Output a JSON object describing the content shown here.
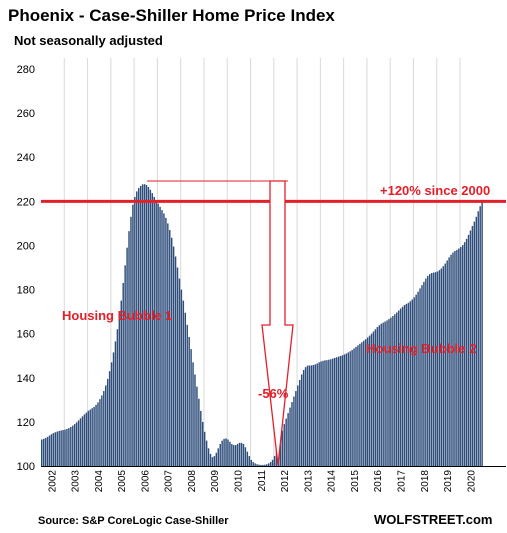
{
  "colors": {
    "bar": "#2e4d7b",
    "accent": "#e3202a",
    "grid": "#d9d9d9"
  },
  "header": {
    "title": "Phoenix - Case-Shiller Home Price Index",
    "subtitle": "Not seasonally adjusted"
  },
  "footer": {
    "source": "Source: S&P CoreLogic Case-Shiller",
    "brand": "WOLFSTREET.com"
  },
  "annotations": {
    "since2000": "+120% since 2000",
    "bubble1": "Housing Bubble 1",
    "bubble2": "Housing Bubble 2",
    "drop": "-56%"
  },
  "chart_data": {
    "type": "bar",
    "title": "Phoenix - Case-Shiller Home Price Index",
    "subtitle": "Not seasonally adjusted",
    "frequency": "monthly",
    "start": "2002-01",
    "ylim": [
      100,
      285
    ],
    "yticks": [
      100,
      120,
      140,
      160,
      180,
      200,
      220,
      240,
      260,
      280
    ],
    "xticks": [
      "2002",
      "2003",
      "2004",
      "2005",
      "2006",
      "2007",
      "2008",
      "2009",
      "2010",
      "2011",
      "2012",
      "2013",
      "2014",
      "2015",
      "2016",
      "2017",
      "2018",
      "2019",
      "2020"
    ],
    "reference_line": {
      "value": 220,
      "label": "+120% since 2000"
    },
    "grid": "vertical",
    "values": [
      112,
      112.3,
      112.7,
      113.2,
      113.8,
      114.4,
      114.9,
      115.3,
      115.6,
      115.9,
      116.1,
      116.3,
      116.5,
      116.8,
      117.2,
      117.7,
      118.3,
      119,
      119.8,
      120.7,
      121.6,
      122.5,
      123.4,
      124.2,
      125,
      125.6,
      126.2,
      126.8,
      127.7,
      128.8,
      130.3,
      132,
      134,
      136.5,
      139.5,
      143,
      147,
      151.5,
      156.5,
      162,
      168,
      175,
      183,
      191,
      199,
      206.5,
      213,
      218.5,
      222,
      224.5,
      226,
      227,
      227.7,
      227.8,
      227.4,
      226.5,
      225.2,
      223.7,
      222,
      220.4,
      219,
      217.5,
      216,
      214.5,
      212.5,
      210,
      207,
      203.5,
      199.5,
      195,
      190,
      185,
      180,
      175,
      169.5,
      164,
      158.5,
      153,
      147,
      141.5,
      136,
      130.5,
      125,
      120,
      115.5,
      111.5,
      108,
      105.5,
      104,
      104.5,
      106,
      108,
      110,
      111.5,
      112.3,
      112.5,
      112,
      111,
      110,
      109.5,
      109.5,
      110,
      110.5,
      110.5,
      110,
      108.5,
      106.5,
      104.5,
      102.8,
      101.8,
      101.2,
      100.8,
      100.6,
      100.5,
      100.5,
      100.6,
      100.8,
      101.2,
      101.8,
      102.8,
      104.5,
      107,
      110,
      113,
      116,
      119,
      121.5,
      124,
      126.5,
      129,
      131.5,
      134,
      136.5,
      139,
      141.5,
      143.5,
      144.8,
      145.5,
      145.6,
      145.6,
      145.8,
      146.1,
      146.5,
      147,
      147.4,
      147.7,
      147.9,
      148,
      148.2,
      148.4,
      148.7,
      149,
      149.3,
      149.6,
      149.9,
      150.2,
      150.6,
      151,
      151.5,
      152,
      152.6,
      153.3,
      154,
      154.7,
      155.4,
      156.1,
      156.8,
      157.5,
      158.3,
      159.1,
      160,
      161,
      162,
      163,
      163.8,
      164.5,
      165,
      165.5,
      166,
      166.6,
      167.3,
      168,
      168.8,
      169.6,
      170.5,
      171.4,
      172.2,
      173,
      173.5,
      174,
      174.7,
      175.5,
      176.5,
      177.7,
      179,
      180.5,
      182,
      183.5,
      185,
      186.2,
      187,
      187.5,
      187.7,
      187.9,
      188.2,
      188.8,
      189.6,
      190.6,
      191.8,
      193.2,
      194.6,
      195.8,
      196.8,
      197.5,
      198,
      198.6,
      199.3,
      200.2,
      201.5,
      203,
      204.8,
      206.8,
      208.8,
      210.8,
      213,
      215.5,
      217.8,
      220.2
    ]
  }
}
